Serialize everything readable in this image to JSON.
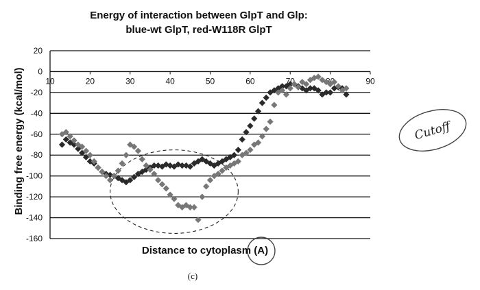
{
  "figure": {
    "caption": "(c)",
    "handwritten_note": "Cutoff"
  },
  "chart_data": {
    "type": "scatter",
    "title": "Energy of interaction between  GlpT and Glp:",
    "subtitle": "blue-wt GlpT, red-W118R GlpT",
    "xlabel": "Distance to cytoplasm (A)",
    "ylabel": "Binding free energy (kcal/mol)",
    "xlim": [
      10,
      90
    ],
    "ylim": [
      -160,
      20
    ],
    "xticks": [
      10,
      20,
      30,
      40,
      50,
      60,
      70,
      80,
      90
    ],
    "yticks": [
      20,
      0,
      -20,
      -40,
      -60,
      -80,
      -100,
      -120,
      -140,
      -160
    ],
    "grid": true,
    "legend": "none",
    "series": [
      {
        "name": "blue-wt GlpT",
        "color": "#2a2a2a",
        "x": [
          13,
          14,
          15,
          16,
          17,
          18,
          19,
          20,
          21,
          22,
          23,
          24,
          25,
          26,
          27,
          28,
          29,
          30,
          31,
          32,
          33,
          34,
          35,
          36,
          37,
          38,
          39,
          40,
          41,
          42,
          43,
          44,
          45,
          46,
          47,
          48,
          49,
          50,
          51,
          52,
          53,
          54,
          55,
          56,
          57,
          58,
          59,
          60,
          61,
          62,
          63,
          64,
          65,
          66,
          67,
          68,
          69,
          70,
          71,
          72,
          73,
          74,
          75,
          76,
          77,
          78,
          79,
          80,
          81,
          82,
          83,
          84
        ],
        "y": [
          -70,
          -65,
          -68,
          -70,
          -74,
          -78,
          -82,
          -86,
          -88,
          -92,
          -96,
          -98,
          -99,
          -100,
          -102,
          -104,
          -106,
          -104,
          -101,
          -98,
          -96,
          -94,
          -92,
          -90,
          -90,
          -91,
          -89,
          -90,
          -91,
          -89,
          -90,
          -90,
          -91,
          -88,
          -86,
          -84,
          -86,
          -88,
          -90,
          -88,
          -86,
          -84,
          -82,
          -80,
          -75,
          -65,
          -58,
          -52,
          -45,
          -38,
          -30,
          -25,
          -20,
          -18,
          -16,
          -14,
          -14,
          -12,
          -12,
          -14,
          -16,
          -18,
          -16,
          -16,
          -18,
          -22,
          -20,
          -20,
          -16,
          -15,
          -16,
          -22
        ]
      },
      {
        "name": "red-W118R GlpT",
        "color": "#777777",
        "x": [
          13,
          14,
          15,
          16,
          17,
          18,
          19,
          20,
          21,
          22,
          23,
          24,
          25,
          26,
          27,
          28,
          29,
          30,
          31,
          32,
          33,
          34,
          35,
          36,
          37,
          38,
          39,
          40,
          41,
          42,
          43,
          44,
          45,
          46,
          47,
          48,
          49,
          50,
          51,
          52,
          53,
          54,
          55,
          56,
          57,
          58,
          59,
          60,
          61,
          62,
          63,
          64,
          65,
          66,
          67,
          68,
          69,
          70,
          71,
          72,
          73,
          74,
          75,
          76,
          77,
          78,
          79,
          80,
          81,
          82,
          83,
          84
        ],
        "y": [
          -60,
          -58,
          -62,
          -66,
          -70,
          -72,
          -76,
          -80,
          -86,
          -92,
          -96,
          -100,
          -104,
          -100,
          -95,
          -88,
          -80,
          -70,
          -72,
          -76,
          -84,
          -90,
          -94,
          -98,
          -104,
          -108,
          -112,
          -118,
          -122,
          -128,
          -130,
          -128,
          -130,
          -130,
          -142,
          -120,
          -110,
          -104,
          -100,
          -98,
          -95,
          -92,
          -90,
          -88,
          -86,
          -80,
          -78,
          -75,
          -70,
          -68,
          -62,
          -55,
          -48,
          -32,
          -20,
          -18,
          -22,
          -16,
          -12,
          -15,
          -10,
          -12,
          -8,
          -6,
          -5,
          -8,
          -10,
          -12,
          -10,
          -14,
          -18,
          -16
        ]
      }
    ],
    "annotations": [
      {
        "type": "dashed-ellipse",
        "x_range": [
          25,
          57
        ],
        "y_range": [
          -155,
          -75
        ]
      },
      {
        "type": "circle",
        "target": "xlabel-unit"
      }
    ]
  }
}
